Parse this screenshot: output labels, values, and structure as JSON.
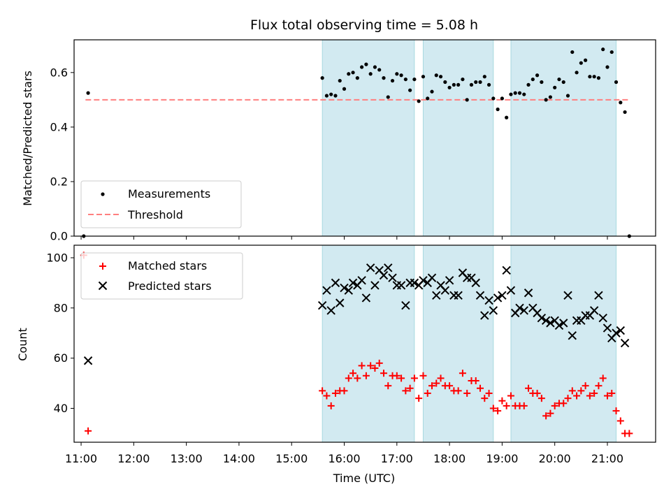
{
  "chart_data": [
    {
      "type": "scatter",
      "title": "Flux total observing time = 5.08 h",
      "xlabel": "",
      "ylabel": "Matched/Predicted stars",
      "xlim": [
        "10:52",
        "21:55"
      ],
      "ylim": [
        0,
        0.72
      ],
      "yticks": [
        0.0,
        0.2,
        0.4,
        0.6
      ],
      "ytick_labels": [
        "0.0",
        "0.2",
        "0.4",
        "0.6"
      ],
      "legend": {
        "placement": "lower-left",
        "entries": [
          "Measurements",
          "Threshold"
        ]
      },
      "colors": {
        "measurements": "#000000",
        "threshold": "#ff7f7f",
        "shading": "#add8e6"
      },
      "shaded_intervals": [
        [
          "15:35",
          "17:20"
        ],
        [
          "17:30",
          "18:50"
        ],
        [
          "19:10",
          "21:10"
        ]
      ],
      "threshold": {
        "name": "Threshold",
        "y": 0.5,
        "x_range": [
          "11:05",
          "21:25"
        ]
      },
      "series": [
        {
          "name": "Measurements",
          "marker": "dot",
          "points": [
            [
              "11:03",
              0.0
            ],
            [
              "11:08",
              0.525
            ],
            [
              "15:35",
              0.58
            ],
            [
              "15:40",
              0.515
            ],
            [
              "15:45",
              0.52
            ],
            [
              "15:50",
              0.515
            ],
            [
              "15:55",
              0.57
            ],
            [
              "16:00",
              0.54
            ],
            [
              "16:05",
              0.595
            ],
            [
              "16:10",
              0.6
            ],
            [
              "16:15",
              0.58
            ],
            [
              "16:20",
              0.62
            ],
            [
              "16:25",
              0.63
            ],
            [
              "16:30",
              0.595
            ],
            [
              "16:35",
              0.62
            ],
            [
              "16:40",
              0.61
            ],
            [
              "16:45",
              0.58
            ],
            [
              "16:50",
              0.51
            ],
            [
              "16:55",
              0.57
            ],
            [
              "17:00",
              0.595
            ],
            [
              "17:05",
              0.59
            ],
            [
              "17:10",
              0.575
            ],
            [
              "17:15",
              0.535
            ],
            [
              "17:20",
              0.575
            ],
            [
              "17:25",
              0.495
            ],
            [
              "17:30",
              0.585
            ],
            [
              "17:35",
              0.505
            ],
            [
              "17:40",
              0.53
            ],
            [
              "17:45",
              0.59
            ],
            [
              "17:50",
              0.585
            ],
            [
              "17:55",
              0.565
            ],
            [
              "18:00",
              0.545
            ],
            [
              "18:05",
              0.555
            ],
            [
              "18:10",
              0.555
            ],
            [
              "18:15",
              0.575
            ],
            [
              "18:20",
              0.5
            ],
            [
              "18:25",
              0.555
            ],
            [
              "18:30",
              0.565
            ],
            [
              "18:35",
              0.565
            ],
            [
              "18:40",
              0.585
            ],
            [
              "18:45",
              0.555
            ],
            [
              "18:50",
              0.505
            ],
            [
              "18:55",
              0.465
            ],
            [
              "19:00",
              0.505
            ],
            [
              "19:05",
              0.435
            ],
            [
              "19:10",
              0.52
            ],
            [
              "19:15",
              0.525
            ],
            [
              "19:20",
              0.525
            ],
            [
              "19:25",
              0.52
            ],
            [
              "19:30",
              0.555
            ],
            [
              "19:35",
              0.575
            ],
            [
              "19:40",
              0.59
            ],
            [
              "19:45",
              0.565
            ],
            [
              "19:50",
              0.5
            ],
            [
              "19:55",
              0.51
            ],
            [
              "20:00",
              0.545
            ],
            [
              "20:05",
              0.575
            ],
            [
              "20:10",
              0.565
            ],
            [
              "20:15",
              0.515
            ],
            [
              "20:20",
              0.675
            ],
            [
              "20:25",
              0.6
            ],
            [
              "20:30",
              0.635
            ],
            [
              "20:35",
              0.645
            ],
            [
              "20:40",
              0.585
            ],
            [
              "20:45",
              0.585
            ],
            [
              "20:50",
              0.58
            ],
            [
              "20:55",
              0.685
            ],
            [
              "21:00",
              0.62
            ],
            [
              "21:05",
              0.675
            ],
            [
              "21:10",
              0.565
            ],
            [
              "21:15",
              0.49
            ],
            [
              "21:20",
              0.455
            ],
            [
              "21:25",
              0.0
            ]
          ]
        }
      ]
    },
    {
      "type": "scatter",
      "title": "",
      "xlabel": "Time (UTC)",
      "ylabel": "Count",
      "xlim": [
        "10:52",
        "21:55"
      ],
      "ylim": [
        26.5,
        105
      ],
      "yticks": [
        40,
        60,
        80,
        100
      ],
      "ytick_labels": [
        "40",
        "60",
        "80",
        "100"
      ],
      "xticks": [
        "11:00",
        "12:00",
        "13:00",
        "14:00",
        "15:00",
        "16:00",
        "17:00",
        "18:00",
        "19:00",
        "20:00",
        "21:00"
      ],
      "xtick_labels": [
        "11:00",
        "12:00",
        "13:00",
        "14:00",
        "15:00",
        "16:00",
        "17:00",
        "18:00",
        "19:00",
        "20:00",
        "21:00"
      ],
      "legend": {
        "placement": "upper-left",
        "entries": [
          "Matched stars",
          "Predicted stars"
        ]
      },
      "colors": {
        "matched": "#ff0000",
        "predicted": "#000000",
        "shading": "#add8e6"
      },
      "shaded_intervals": [
        [
          "15:35",
          "17:20"
        ],
        [
          "17:30",
          "18:50"
        ],
        [
          "19:10",
          "21:10"
        ]
      ],
      "series": [
        {
          "name": "Matched stars",
          "marker": "plus",
          "points": [
            [
              "11:03",
              101
            ],
            [
              "11:08",
              31
            ],
            [
              "15:35",
              47
            ],
            [
              "15:40",
              45
            ],
            [
              "15:45",
              41
            ],
            [
              "15:50",
              46
            ],
            [
              "15:55",
              47
            ],
            [
              "16:00",
              47
            ],
            [
              "16:05",
              52
            ],
            [
              "16:10",
              54
            ],
            [
              "16:15",
              52
            ],
            [
              "16:20",
              57
            ],
            [
              "16:25",
              53
            ],
            [
              "16:30",
              57
            ],
            [
              "16:35",
              56
            ],
            [
              "16:40",
              58
            ],
            [
              "16:45",
              54
            ],
            [
              "16:50",
              49
            ],
            [
              "16:55",
              53
            ],
            [
              "17:00",
              53
            ],
            [
              "17:05",
              52
            ],
            [
              "17:10",
              47
            ],
            [
              "17:15",
              48
            ],
            [
              "17:20",
              52
            ],
            [
              "17:25",
              44
            ],
            [
              "17:30",
              53
            ],
            [
              "17:35",
              46
            ],
            [
              "17:40",
              49
            ],
            [
              "17:45",
              50
            ],
            [
              "17:50",
              52
            ],
            [
              "17:55",
              49
            ],
            [
              "18:00",
              49
            ],
            [
              "18:05",
              47
            ],
            [
              "18:10",
              47
            ],
            [
              "18:15",
              54
            ],
            [
              "18:20",
              46
            ],
            [
              "18:25",
              51
            ],
            [
              "18:30",
              51
            ],
            [
              "18:35",
              48
            ],
            [
              "18:40",
              44
            ],
            [
              "18:45",
              46
            ],
            [
              "18:50",
              40
            ],
            [
              "18:55",
              39
            ],
            [
              "19:00",
              43
            ],
            [
              "19:05",
              41
            ],
            [
              "19:10",
              45
            ],
            [
              "19:15",
              41
            ],
            [
              "19:20",
              41
            ],
            [
              "19:25",
              41
            ],
            [
              "19:30",
              48
            ],
            [
              "19:35",
              46
            ],
            [
              "19:40",
              46
            ],
            [
              "19:45",
              44
            ],
            [
              "19:50",
              37
            ],
            [
              "19:55",
              38
            ],
            [
              "20:00",
              41
            ],
            [
              "20:05",
              42
            ],
            [
              "20:10",
              42
            ],
            [
              "20:15",
              44
            ],
            [
              "20:20",
              47
            ],
            [
              "20:25",
              45
            ],
            [
              "20:30",
              47
            ],
            [
              "20:35",
              49
            ],
            [
              "20:40",
              45
            ],
            [
              "20:45",
              46
            ],
            [
              "20:50",
              49
            ],
            [
              "20:55",
              52
            ],
            [
              "21:00",
              45
            ],
            [
              "21:05",
              46
            ],
            [
              "21:10",
              39
            ],
            [
              "21:15",
              35
            ],
            [
              "21:20",
              30
            ],
            [
              "21:25",
              30
            ]
          ]
        },
        {
          "name": "Predicted stars",
          "marker": "x",
          "points": [
            [
              "11:08",
              59
            ],
            [
              "15:35",
              81
            ],
            [
              "15:40",
              87
            ],
            [
              "15:45",
              79
            ],
            [
              "15:50",
              90
            ],
            [
              "15:55",
              82
            ],
            [
              "16:00",
              88
            ],
            [
              "16:05",
              87
            ],
            [
              "16:10",
              90
            ],
            [
              "16:15",
              89
            ],
            [
              "16:20",
              91
            ],
            [
              "16:25",
              84
            ],
            [
              "16:30",
              96
            ],
            [
              "16:35",
              89
            ],
            [
              "16:40",
              95
            ],
            [
              "16:45",
              93
            ],
            [
              "16:50",
              96
            ],
            [
              "16:55",
              92
            ],
            [
              "17:00",
              89
            ],
            [
              "17:05",
              89
            ],
            [
              "17:10",
              81
            ],
            [
              "17:15",
              90
            ],
            [
              "17:20",
              90
            ],
            [
              "17:25",
              89
            ],
            [
              "17:30",
              91
            ],
            [
              "17:35",
              90
            ],
            [
              "17:40",
              92
            ],
            [
              "17:45",
              85
            ],
            [
              "17:50",
              89
            ],
            [
              "17:55",
              87
            ],
            [
              "18:00",
              91
            ],
            [
              "18:05",
              85
            ],
            [
              "18:10",
              85
            ],
            [
              "18:15",
              94
            ],
            [
              "18:20",
              92
            ],
            [
              "18:25",
              92
            ],
            [
              "18:30",
              90
            ],
            [
              "18:35",
              85
            ],
            [
              "18:40",
              77
            ],
            [
              "18:45",
              83
            ],
            [
              "18:50",
              79
            ],
            [
              "18:55",
              84
            ],
            [
              "19:00",
              85
            ],
            [
              "19:05",
              95
            ],
            [
              "19:10",
              87
            ],
            [
              "19:15",
              78
            ],
            [
              "19:20",
              80
            ],
            [
              "19:25",
              79
            ],
            [
              "19:30",
              86
            ],
            [
              "19:35",
              80
            ],
            [
              "19:40",
              78
            ],
            [
              "19:45",
              76
            ],
            [
              "19:50",
              75
            ],
            [
              "19:55",
              74
            ],
            [
              "20:00",
              75
            ],
            [
              "20:05",
              73
            ],
            [
              "20:10",
              74
            ],
            [
              "20:15",
              85
            ],
            [
              "20:20",
              69
            ],
            [
              "20:25",
              75
            ],
            [
              "20:30",
              75
            ],
            [
              "20:35",
              77
            ],
            [
              "20:40",
              77
            ],
            [
              "20:45",
              79
            ],
            [
              "20:50",
              85
            ],
            [
              "20:55",
              76
            ],
            [
              "21:00",
              72
            ],
            [
              "21:05",
              68
            ],
            [
              "21:10",
              70
            ],
            [
              "21:15",
              71
            ],
            [
              "21:20",
              66
            ]
          ]
        }
      ]
    }
  ]
}
